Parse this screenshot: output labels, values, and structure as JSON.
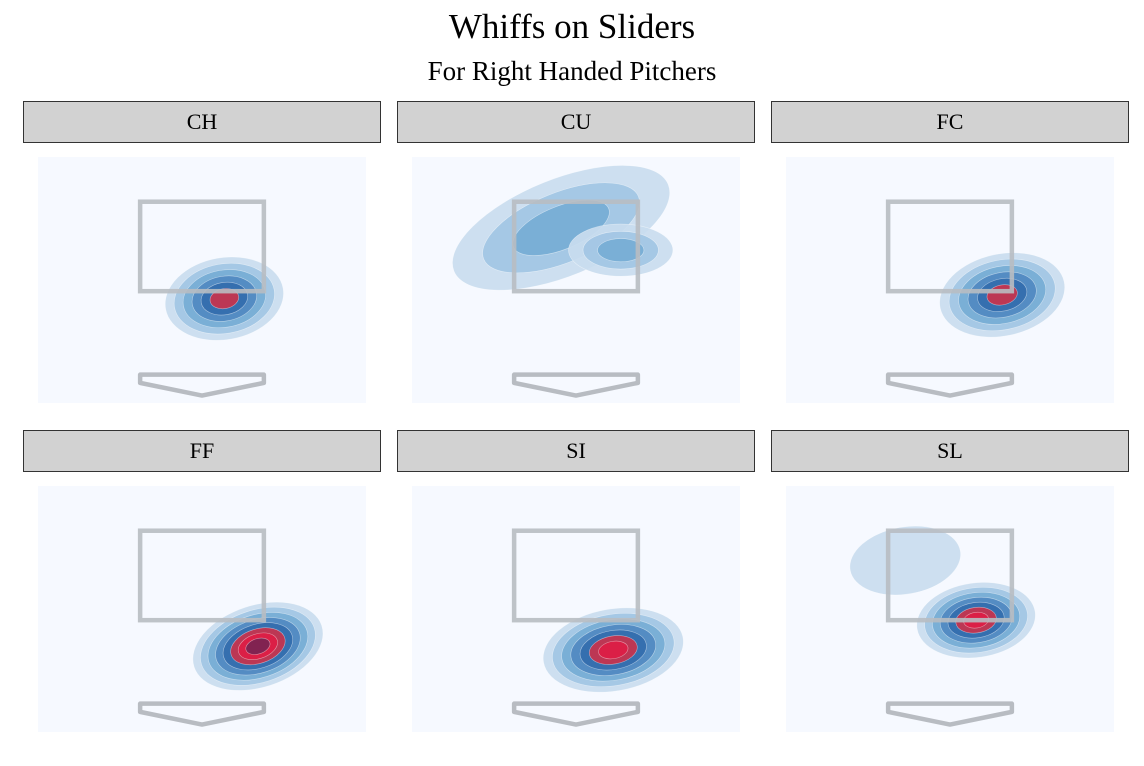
{
  "chart_data": {
    "type": "contour",
    "title": "Whiffs on Sliders",
    "subtitle": "For Right Handed Pitchers",
    "colors": {
      "background": "#f6f9ff",
      "levels": [
        "#c9dcef",
        "#a2c6e4",
        "#76acd5",
        "#5089c1",
        "#336cae",
        "#c8324c",
        "#dd1d45",
        "#7a2452"
      ],
      "zone": "#b8bcc2"
    },
    "facets": [
      {
        "label": "CH",
        "blobs": [
          {
            "cx": 0.3,
            "cy": 1.4,
            "sx": 0.8,
            "sy": 0.55,
            "rot": -10,
            "levels": 6
          }
        ]
      },
      {
        "label": "CU",
        "blobs": [
          {
            "cx": -0.2,
            "cy": 2.35,
            "sx": 1.55,
            "sy": 0.65,
            "rot": -22,
            "levels": 3
          },
          {
            "cx": 0.6,
            "cy": 2.05,
            "sx": 0.7,
            "sy": 0.35,
            "rot": 0,
            "levels": 3
          }
        ]
      },
      {
        "label": "FC",
        "blobs": [
          {
            "cx": 0.7,
            "cy": 1.45,
            "sx": 0.85,
            "sy": 0.55,
            "rot": -12,
            "levels": 6
          }
        ]
      },
      {
        "label": "FF",
        "blobs": [
          {
            "cx": 0.75,
            "cy": 1.15,
            "sx": 0.9,
            "sy": 0.55,
            "rot": -18,
            "levels": 8
          }
        ]
      },
      {
        "label": "SI",
        "blobs": [
          {
            "cx": 0.5,
            "cy": 1.1,
            "sx": 0.95,
            "sy": 0.55,
            "rot": -10,
            "levels": 7
          }
        ]
      },
      {
        "label": "SL",
        "blobs": [
          {
            "cx": 0.35,
            "cy": 1.5,
            "sx": 0.8,
            "sy": 0.5,
            "rot": -8,
            "levels": 7
          },
          {
            "cx": -0.6,
            "cy": 2.3,
            "sx": 0.75,
            "sy": 0.45,
            "rot": -10,
            "levels": 1
          }
        ]
      }
    ]
  }
}
